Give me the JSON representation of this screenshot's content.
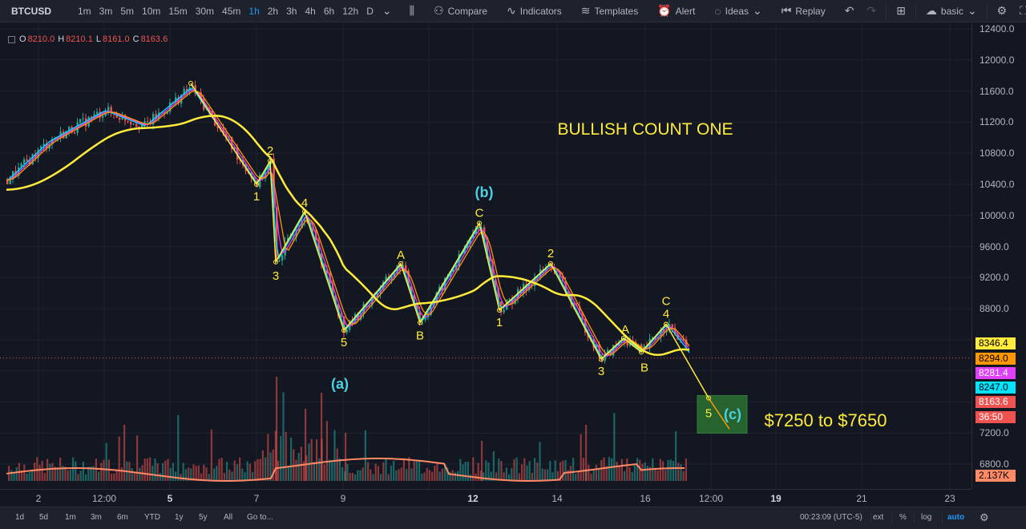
{
  "toolbar": {
    "symbol": "BTCUSD",
    "intervals": [
      "1m",
      "3m",
      "5m",
      "10m",
      "15m",
      "30m",
      "45m",
      "1h",
      "2h",
      "3h",
      "4h",
      "6h",
      "12h",
      "D"
    ],
    "active_interval": "1h",
    "compare_label": "Compare",
    "indicators_label": "Indicators",
    "templates_label": "Templates",
    "alert_label": "Alert",
    "ideas_label": "Ideas",
    "replay_label": "Replay",
    "layout_label": "basic"
  },
  "legend": {
    "o_label": "O",
    "o_value": "8210.0",
    "h_label": "H",
    "h_value": "8210.1",
    "l_label": "L",
    "l_value": "8161.0",
    "c_label": "C",
    "c_value": "8163.6"
  },
  "annotations": {
    "title": "BULLISH COUNT ONE",
    "target": "$7250 to $7650",
    "wave_a_paren": "(a)",
    "wave_b_paren": "(b)",
    "wave_c_paren": "(c)"
  },
  "price_scale": {
    "ticks": [
      "12400.0",
      "12000.0",
      "11600.0",
      "11200.0",
      "10800.0",
      "10400.0",
      "10000.0",
      "9600.0",
      "9200.0",
      "8800.0",
      "7200.0",
      "6800.0"
    ],
    "tags": [
      {
        "text": "8346.4",
        "bg": "#ffeb3b",
        "fg": "#000000"
      },
      {
        "text": "8294.0",
        "bg": "#ff9800",
        "fg": "#000000"
      },
      {
        "text": "8281.4",
        "bg": "#e040fb",
        "fg": "#ffffff"
      },
      {
        "text": "8247.0",
        "bg": "#00e5ff",
        "fg": "#000000"
      },
      {
        "text": "8163.6",
        "bg": "#ef5350",
        "fg": "#ffffff"
      },
      {
        "text": "36:50",
        "bg": "#ef5350",
        "fg": "#ffffff"
      },
      {
        "text": "2.137K",
        "bg": "#ff8a65",
        "fg": "#000000"
      }
    ]
  },
  "time_axis": {
    "labels": [
      {
        "text": "2",
        "bold": false
      },
      {
        "text": "12:00",
        "bold": false
      },
      {
        "text": "5",
        "bold": true
      },
      {
        "text": "7",
        "bold": false
      },
      {
        "text": "9",
        "bold": false
      },
      {
        "text": "12",
        "bold": true
      },
      {
        "text": "14",
        "bold": false
      },
      {
        "text": "16",
        "bold": false
      },
      {
        "text": "12:00",
        "bold": false
      },
      {
        "text": "19",
        "bold": true
      },
      {
        "text": "21",
        "bold": false
      },
      {
        "text": "23",
        "bold": false
      }
    ]
  },
  "bottom_bar": {
    "ranges": [
      "1d",
      "5d",
      "1m",
      "3m",
      "6m",
      "YTD",
      "1y",
      "5y",
      "All"
    ],
    "goto_label": "Go to...",
    "clock": "00:23:09 (UTC-5)",
    "ext_label": "ext",
    "pct_label": "%",
    "log_label": "log",
    "auto_label": "auto"
  },
  "colors": {
    "background": "#131722",
    "wave_line": "#ffeb3b",
    "annotation_yellow": "#ffeb3b",
    "annotation_cyan": "#4dd0e1",
    "up": "#26a69a",
    "down": "#ef5350",
    "target_box": "#2e7d32"
  },
  "chart_data": {
    "type": "candlestick-with-elliott-wave",
    "symbol": "BTCUSD",
    "interval": "1h",
    "ylim": [
      6600,
      12500
    ],
    "wave_points": [
      {
        "label": "",
        "price": 11700
      },
      {
        "label": "1",
        "price": 10400
      },
      {
        "label": "2",
        "price": 10700
      },
      {
        "label": "3",
        "price": 9400
      },
      {
        "label": "4",
        "price": 10050
      },
      {
        "label": "5",
        "price": 8520
      },
      {
        "label": "A",
        "price": 9380
      },
      {
        "label": "B",
        "price": 8620
      },
      {
        "label": "C",
        "price": 9900
      },
      {
        "label": "1",
        "price": 8780
      },
      {
        "label": "2",
        "price": 9380
      },
      {
        "label": "3",
        "price": 8150
      },
      {
        "label": "A",
        "price": 8420
      },
      {
        "label": "B",
        "price": 8240
      },
      {
        "label": "C",
        "price": 8600
      },
      {
        "label": "4",
        "price": 8600
      },
      {
        "label": "5",
        "price": 7650
      }
    ],
    "target_range": [
      7250,
      7650
    ]
  }
}
